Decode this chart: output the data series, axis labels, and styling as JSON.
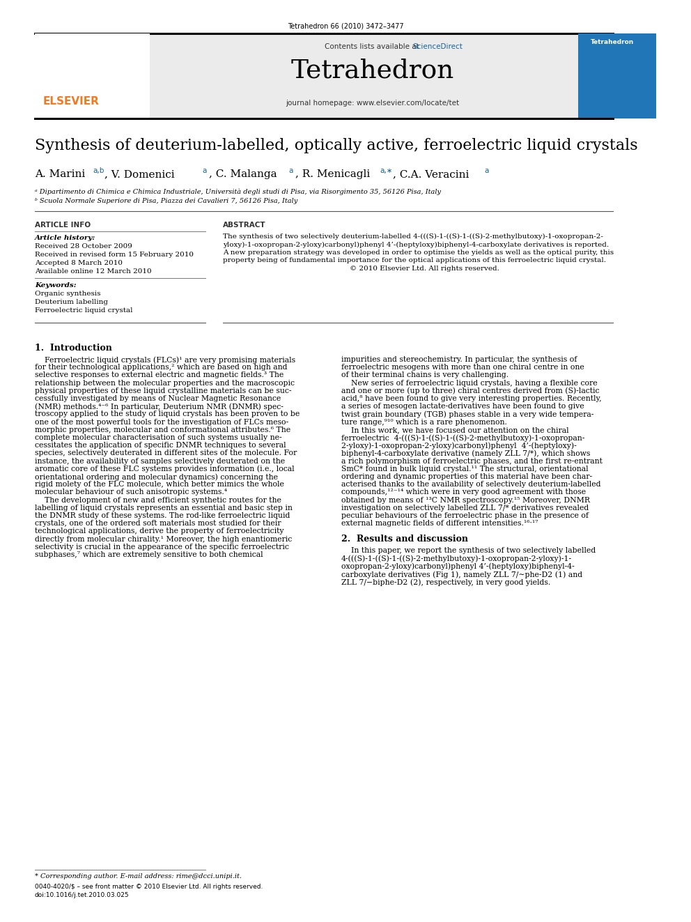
{
  "page_title": "Tetrahedron 66 (2010) 3472–3477",
  "journal_name": "Tetrahedron",
  "contents_line": "Contents lists available at ",
  "sciencedirect_text": "ScienceDirect",
  "journal_homepage": "journal homepage: www.elsevier.com/locate/tet",
  "paper_title": "Synthesis of deuterium-labelled, optically active, ferroelectric liquid crystals",
  "affil_a": "ᵃ Dipartimento di Chimica e Chimica Industriale, Università degli studi di Pisa, via Risorgimento 35, 56126 Pisa, Italy",
  "affil_b": "ᵇ Scuola Normale Superiore di Pisa, Piazza dei Cavalieri 7, 56126 Pisa, Italy",
  "article_info_header": "ARTICLE INFO",
  "abstract_header": "ABSTRACT",
  "article_history_label": "Article history:",
  "received": "Received 28 October 2009",
  "received_revised": "Received in revised form 15 February 2010",
  "accepted": "Accepted 8 March 2010",
  "available": "Available online 12 March 2010",
  "keywords_label": "Keywords:",
  "keyword1": "Organic synthesis",
  "keyword2": "Deuterium labelling",
  "keyword3": "Ferroelectric liquid crystal",
  "bg_color": "#ffffff",
  "header_bg": "#ebebeb",
  "elsevier_orange": "#f47920",
  "sciencedirect_blue": "#1a6496",
  "intro_heading": "1.  Introduction",
  "sec2_heading": "2.  Results and discussion",
  "footer_note": "* Corresponding author. E-mail address: rime@dcci.unipi.it.",
  "footer_issn1": "0040-4020/$ – see front matter © 2010 Elsevier Ltd. All rights reserved.",
  "footer_issn2": "doi:10.1016/j.tet.2010.03.025"
}
